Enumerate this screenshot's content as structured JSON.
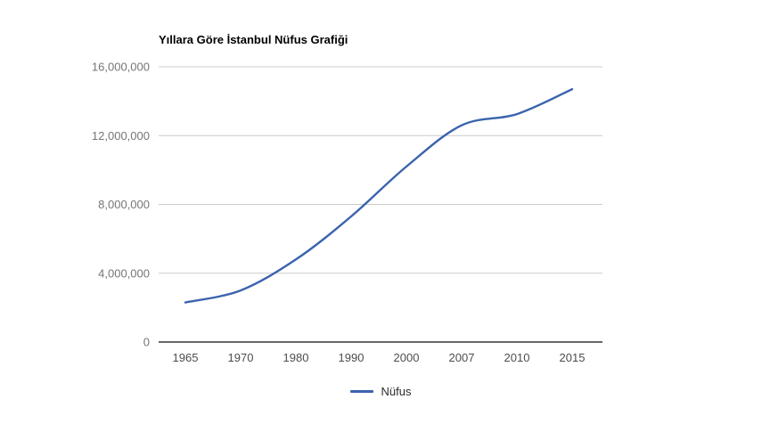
{
  "chart": {
    "title": "Yıllara Göre İstanbul Nüfus Grafiği",
    "legend": {
      "label": "Nüfus",
      "position": "bottom"
    }
  },
  "colors": {
    "series_line": "#3b63ad",
    "gridline": "#cccccc",
    "axis_baseline": "#333333",
    "y_tick_text": "#757575",
    "x_tick_text": "#4d4d4d",
    "title_text": "#000000",
    "legend_text": "#2b2b2b",
    "background": "#ffffff"
  },
  "chart_data": {
    "type": "line",
    "title": "Yıllara Göre İstanbul Nüfus Grafiği",
    "xlabel": "",
    "ylabel": "",
    "categories": [
      "1965",
      "1970",
      "1980",
      "1990",
      "2000",
      "2007",
      "2010",
      "2015"
    ],
    "series": [
      {
        "name": "Nüfus",
        "color": "#3b63ad",
        "values": [
          2300000,
          3000000,
          4800000,
          7300000,
          10200000,
          12600000,
          13250000,
          14700000
        ]
      }
    ],
    "ylim": [
      0,
      16000000
    ],
    "yticks": [
      0,
      4000000,
      8000000,
      12000000,
      16000000
    ],
    "ytick_labels": [
      "0",
      "4,000,000",
      "8,000,000",
      "12,000,000",
      "16,000,000"
    ],
    "grid": true,
    "line_smooth": true,
    "legend_position": "bottom"
  }
}
